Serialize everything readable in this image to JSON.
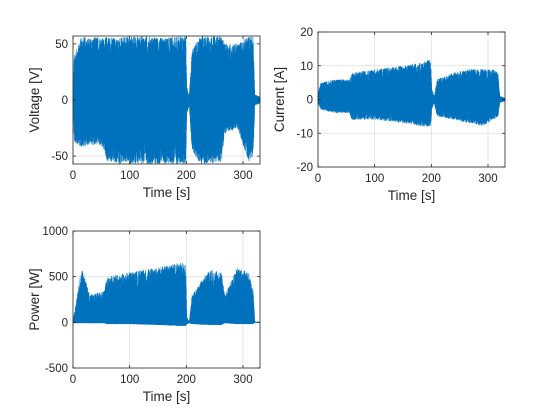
{
  "chart_data": [
    {
      "type": "line",
      "xlabel": "Time [s]",
      "ylabel": "Voltage [V]",
      "xlim": [
        0,
        330
      ],
      "ylim": [
        -57,
        57
      ],
      "xticks": [
        0,
        100,
        200,
        300
      ],
      "yticks": [
        -50,
        0,
        50
      ],
      "grid": true,
      "series_color": "#0072BD",
      "envelope": [
        {
          "t": 0,
          "max": 0,
          "min": 0
        },
        {
          "t": 2,
          "max": 40,
          "min": -38
        },
        {
          "t": 15,
          "max": 57,
          "min": -42
        },
        {
          "t": 30,
          "max": 55,
          "min": -40
        },
        {
          "t": 45,
          "max": 57,
          "min": -40
        },
        {
          "t": 55,
          "max": 55,
          "min": -45
        },
        {
          "t": 60,
          "max": 57,
          "min": -55
        },
        {
          "t": 80,
          "max": 55,
          "min": -57
        },
        {
          "t": 100,
          "max": 57,
          "min": -57
        },
        {
          "t": 130,
          "max": 57,
          "min": -57
        },
        {
          "t": 160,
          "max": 55,
          "min": -57
        },
        {
          "t": 185,
          "max": 57,
          "min": -57
        },
        {
          "t": 199,
          "max": 57,
          "min": -57
        },
        {
          "t": 201,
          "max": 12,
          "min": -12
        },
        {
          "t": 205,
          "max": 4,
          "min": -5
        },
        {
          "t": 210,
          "max": 45,
          "min": -45
        },
        {
          "t": 225,
          "max": 57,
          "min": -57
        },
        {
          "t": 240,
          "max": 57,
          "min": -57
        },
        {
          "t": 262,
          "max": 57,
          "min": -55
        },
        {
          "t": 268,
          "max": 50,
          "min": -30
        },
        {
          "t": 290,
          "max": 50,
          "min": -25
        },
        {
          "t": 310,
          "max": 57,
          "min": -55
        },
        {
          "t": 318,
          "max": 57,
          "min": -50
        },
        {
          "t": 321,
          "max": 5,
          "min": -5
        },
        {
          "t": 330,
          "max": 3,
          "min": -3
        }
      ]
    },
    {
      "type": "line",
      "xlabel": "Time [s]",
      "ylabel": "Current [A]",
      "xlim": [
        0,
        330
      ],
      "ylim": [
        -20,
        20
      ],
      "xticks": [
        0,
        100,
        200,
        300
      ],
      "yticks": [
        -20,
        -10,
        0,
        10,
        20
      ],
      "grid": true,
      "series_color": "#0072BD",
      "envelope": [
        {
          "t": 0,
          "max": 2,
          "min": -1
        },
        {
          "t": 5,
          "max": 5,
          "min": -3
        },
        {
          "t": 30,
          "max": 6,
          "min": -4
        },
        {
          "t": 55,
          "max": 6,
          "min": -4
        },
        {
          "t": 60,
          "max": 8,
          "min": -6
        },
        {
          "t": 100,
          "max": 9,
          "min": -6
        },
        {
          "t": 150,
          "max": 10,
          "min": -7
        },
        {
          "t": 185,
          "max": 11,
          "min": -8
        },
        {
          "t": 199,
          "max": 12,
          "min": -8
        },
        {
          "t": 201,
          "max": 3,
          "min": -3
        },
        {
          "t": 205,
          "max": 1,
          "min": -1
        },
        {
          "t": 210,
          "max": 6,
          "min": -5
        },
        {
          "t": 240,
          "max": 8,
          "min": -6
        },
        {
          "t": 265,
          "max": 9,
          "min": -7
        },
        {
          "t": 290,
          "max": 9,
          "min": -8
        },
        {
          "t": 310,
          "max": 9,
          "min": -6
        },
        {
          "t": 318,
          "max": 8,
          "min": -5
        },
        {
          "t": 321,
          "max": 1,
          "min": -1
        },
        {
          "t": 330,
          "max": 0.5,
          "min": -0.5
        }
      ]
    },
    {
      "type": "line",
      "xlabel": "Time [s]",
      "ylabel": "Power [W]",
      "xlim": [
        0,
        330
      ],
      "ylim": [
        -500,
        1000
      ],
      "xticks": [
        0,
        100,
        200,
        300
      ],
      "yticks": [
        -500,
        0,
        500,
        1000
      ],
      "grid": true,
      "series_color": "#0072BD",
      "envelope": [
        {
          "t": 0,
          "max": 20,
          "min": -10
        },
        {
          "t": 5,
          "max": 200,
          "min": -10
        },
        {
          "t": 15,
          "max": 600,
          "min": -10
        },
        {
          "t": 30,
          "max": 300,
          "min": -10
        },
        {
          "t": 55,
          "max": 350,
          "min": -10
        },
        {
          "t": 60,
          "max": 500,
          "min": -20
        },
        {
          "t": 100,
          "max": 550,
          "min": -20
        },
        {
          "t": 150,
          "max": 600,
          "min": -30
        },
        {
          "t": 185,
          "max": 650,
          "min": -40
        },
        {
          "t": 199,
          "max": 650,
          "min": -40
        },
        {
          "t": 201,
          "max": 60,
          "min": -20
        },
        {
          "t": 205,
          "max": 10,
          "min": -10
        },
        {
          "t": 210,
          "max": 300,
          "min": -20
        },
        {
          "t": 240,
          "max": 580,
          "min": -30
        },
        {
          "t": 262,
          "max": 550,
          "min": -30
        },
        {
          "t": 268,
          "max": 300,
          "min": -10
        },
        {
          "t": 290,
          "max": 600,
          "min": -20
        },
        {
          "t": 310,
          "max": 550,
          "min": -20
        },
        {
          "t": 318,
          "max": 350,
          "min": -20
        },
        {
          "t": 321,
          "max": 10,
          "min": -5
        },
        {
          "t": 330,
          "max": 5,
          "min": -5
        }
      ]
    }
  ]
}
